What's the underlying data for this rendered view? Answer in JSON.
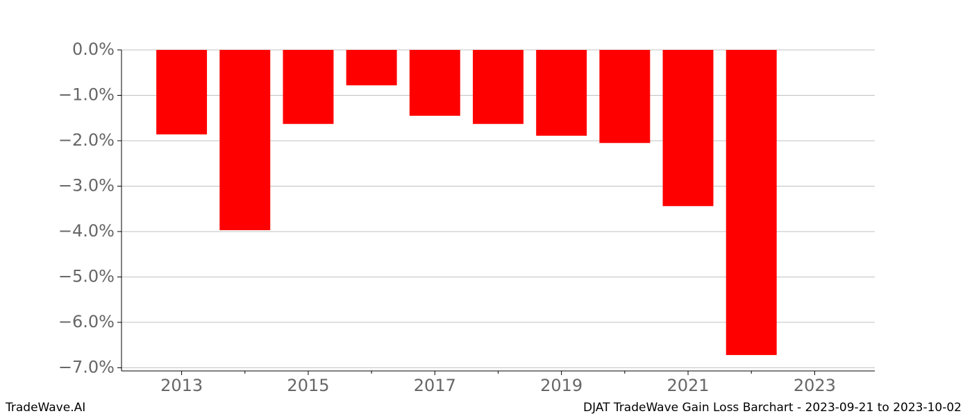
{
  "chart_data": {
    "type": "bar",
    "x": [
      2013,
      2014,
      2015,
      2016,
      2017,
      2018,
      2019,
      2020,
      2021,
      2022
    ],
    "values": [
      -1.86,
      -3.97,
      -1.63,
      -0.78,
      -1.45,
      -1.63,
      -1.89,
      -2.05,
      -3.44,
      -6.72
    ],
    "color": "#ff0000",
    "bar_width": 0.8,
    "xlim": [
      2012.05,
      2023.95
    ],
    "xticks": [
      2013,
      2015,
      2017,
      2019,
      2021,
      2023
    ],
    "xminorticks": [
      2014,
      2016,
      2018,
      2020,
      2022
    ],
    "ylim": [
      -7.07,
      0
    ],
    "yticks": [
      {
        "value": 0,
        "label": "0.0%"
      },
      {
        "value": -1,
        "label": "−1.0%"
      },
      {
        "value": -2,
        "label": "−2.0%"
      },
      {
        "value": -3,
        "label": "−3.0%"
      },
      {
        "value": -4,
        "label": "−4.0%"
      },
      {
        "value": -5,
        "label": "−5.0%"
      },
      {
        "value": -6,
        "label": "−6.0%"
      },
      {
        "value": -7,
        "label": "−7.0%"
      }
    ],
    "grid": true,
    "footer_left": "TradeWave.AI",
    "footer_right": "DJAT TradeWave Gain Loss Barchart - 2023-09-21 to 2023-10-02"
  }
}
